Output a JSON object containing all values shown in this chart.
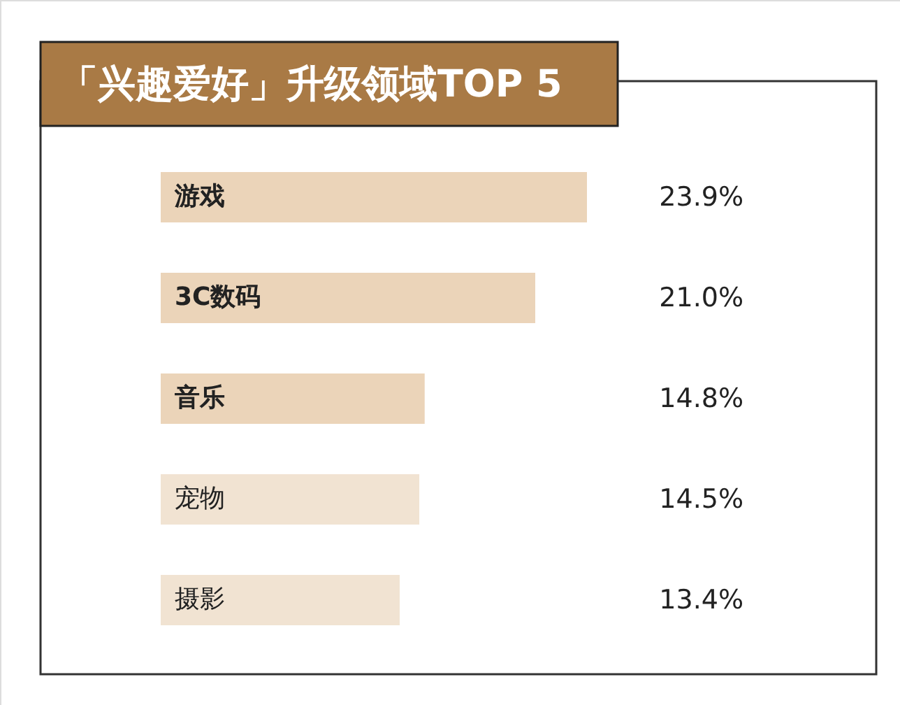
{
  "chart_data": {
    "type": "bar",
    "orientation": "horizontal",
    "title": "「兴趣爱好」升级领域TOP 5",
    "categories": [
      "游戏",
      "3C数码",
      "音乐",
      "宠物",
      "摄影"
    ],
    "values": [
      23.9,
      21.0,
      14.8,
      14.5,
      13.4
    ],
    "colors": [
      "#ebd4b9",
      "#ebd4b9",
      "#ebd4b9",
      "#f1e3d2",
      "#f1e3d2"
    ],
    "value_labels": [
      "23.9%",
      "21.0%",
      "14.8%",
      "14.5%",
      "13.4%"
    ]
  }
}
